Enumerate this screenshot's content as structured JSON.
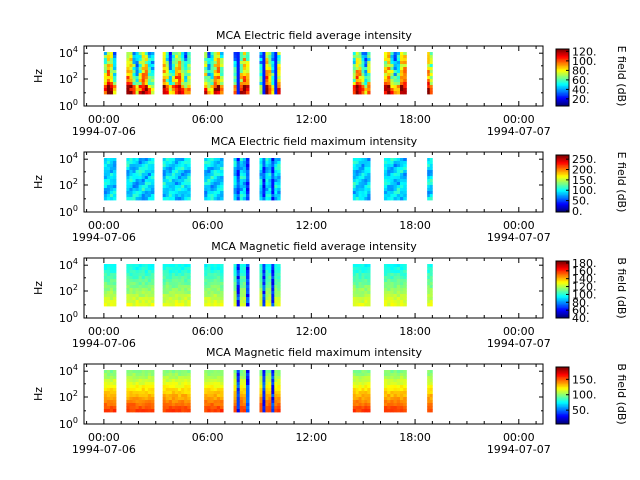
{
  "chart_data": [
    {
      "type": "heatmap",
      "title": "MCA  Electric field average intensity",
      "ylabel": "Hz",
      "y_scale": "log",
      "y_ticks": [
        {
          "exp": "0"
        },
        {
          "exp": "2"
        },
        {
          "exp": "4"
        }
      ],
      "x_ticks": [
        {
          "time": "00:00",
          "date": "1994-07-06"
        },
        {
          "time": "06:00"
        },
        {
          "time": "12:00"
        },
        {
          "time": "18:00"
        },
        {
          "time": "00:00",
          "date": "1994-07-07"
        }
      ],
      "colorbar": {
        "label": "E field (dB)",
        "ticks": [
          "20.",
          "40.",
          "60.",
          "80.",
          "100.",
          "120."
        ],
        "range": [
          5,
          125
        ]
      },
      "blocks_hours": [
        [
          0.0,
          0.7
        ],
        [
          1.3,
          2.9
        ],
        [
          3.4,
          5.0
        ],
        [
          5.8,
          6.9
        ],
        [
          7.5,
          8.4
        ],
        [
          9.0,
          10.2
        ],
        [
          14.4,
          15.4
        ],
        [
          16.2,
          17.5
        ],
        [
          18.7,
          19.0
        ]
      ],
      "level": "average-electric"
    },
    {
      "type": "heatmap",
      "title": "MCA  Electric field maximum intensity",
      "ylabel": "Hz",
      "y_scale": "log",
      "y_ticks": [
        {
          "exp": "0"
        },
        {
          "exp": "2"
        },
        {
          "exp": "4"
        }
      ],
      "x_ticks": [
        {
          "time": "00:00",
          "date": "1994-07-06"
        },
        {
          "time": "06:00"
        },
        {
          "time": "12:00"
        },
        {
          "time": "18:00"
        },
        {
          "time": "00:00",
          "date": "1994-07-07"
        }
      ],
      "colorbar": {
        "label": "E field (dB)",
        "ticks": [
          "0.",
          "50.",
          "100.",
          "150.",
          "200.",
          "250."
        ],
        "range": [
          -5,
          270
        ]
      },
      "blocks_hours": [
        [
          0.0,
          0.7
        ],
        [
          1.3,
          2.9
        ],
        [
          3.4,
          5.0
        ],
        [
          5.8,
          6.9
        ],
        [
          7.5,
          8.4
        ],
        [
          9.0,
          10.2
        ],
        [
          14.4,
          15.4
        ],
        [
          16.2,
          17.5
        ],
        [
          18.7,
          19.0
        ]
      ],
      "level": "maximum-electric"
    },
    {
      "type": "heatmap",
      "title": "MCA  Magnetic field average intensity",
      "ylabel": "Hz",
      "y_scale": "log",
      "y_ticks": [
        {
          "exp": "0"
        },
        {
          "exp": "2"
        },
        {
          "exp": "4"
        }
      ],
      "x_ticks": [
        {
          "time": "00:00",
          "date": "1994-07-06"
        },
        {
          "time": "06:00"
        },
        {
          "time": "12:00"
        },
        {
          "time": "18:00"
        },
        {
          "time": "00:00",
          "date": "1994-07-07"
        }
      ],
      "colorbar": {
        "label": "B field (dB)",
        "ticks": [
          "40.",
          "60.",
          "80.",
          "100.",
          "120.",
          "140.",
          "160.",
          "180."
        ],
        "range": [
          40,
          185
        ]
      },
      "blocks_hours": [
        [
          0.0,
          0.7
        ],
        [
          1.3,
          2.9
        ],
        [
          3.4,
          5.0
        ],
        [
          5.8,
          6.9
        ],
        [
          7.5,
          8.4
        ],
        [
          9.0,
          10.2
        ],
        [
          14.4,
          15.4
        ],
        [
          16.2,
          17.5
        ],
        [
          18.7,
          19.0
        ]
      ],
      "level": "average-magnetic"
    },
    {
      "type": "heatmap",
      "title": "MCA  Magnetic field maximum intensity",
      "ylabel": "Hz",
      "y_scale": "log",
      "y_ticks": [
        {
          "exp": "0"
        },
        {
          "exp": "2"
        },
        {
          "exp": "4"
        }
      ],
      "x_ticks": [
        {
          "time": "00:00",
          "date": "1994-07-06"
        },
        {
          "time": "06:00"
        },
        {
          "time": "12:00"
        },
        {
          "time": "18:00"
        },
        {
          "time": "00:00",
          "date": "1994-07-07"
        }
      ],
      "colorbar": {
        "label": "B field (dB)",
        "ticks": [
          "50.",
          "100.",
          "150."
        ],
        "range": [
          5,
          190
        ]
      },
      "blocks_hours": [
        [
          0.0,
          0.7
        ],
        [
          1.3,
          2.9
        ],
        [
          3.4,
          5.0
        ],
        [
          5.8,
          6.9
        ],
        [
          7.5,
          8.4
        ],
        [
          9.0,
          10.2
        ],
        [
          14.4,
          15.4
        ],
        [
          16.2,
          17.5
        ],
        [
          18.7,
          19.0
        ]
      ],
      "level": "maximum-magnetic"
    }
  ]
}
